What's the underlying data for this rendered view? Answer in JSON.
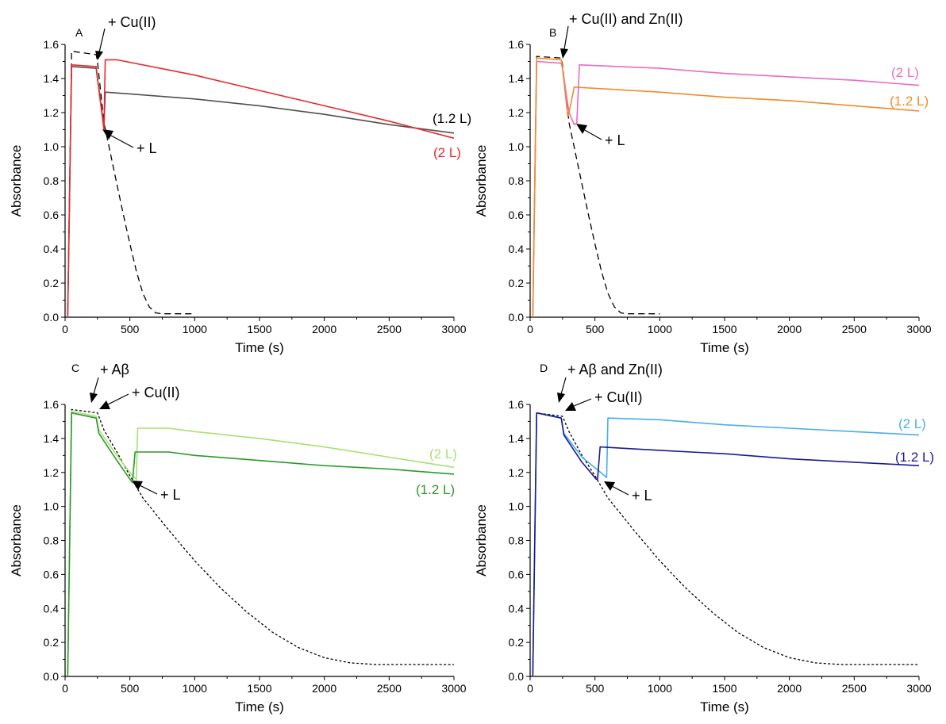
{
  "chart_data": [
    {
      "type": "line",
      "panel_label": "A",
      "xlabel": "Time (s)",
      "ylabel": "Absorbance",
      "xlim": [
        0,
        3000
      ],
      "ylim": [
        0,
        1.6
      ],
      "xticks": [
        "0",
        "500",
        "1000",
        "1500",
        "2000",
        "2500",
        "3000"
      ],
      "yticks": [
        "0.0",
        "0.2",
        "0.4",
        "0.6",
        "0.8",
        "1.0",
        "1.2",
        "1.4",
        "1.6"
      ],
      "series": [
        {
          "name": "",
          "color": "#000000",
          "dash": "dashed",
          "x": [
            20,
            50,
            240,
            250,
            300,
            350,
            400,
            450,
            500,
            550,
            600,
            650,
            700,
            750,
            800,
            900,
            1000
          ],
          "y": [
            0.0,
            1.56,
            1.54,
            1.5,
            1.14,
            0.96,
            0.78,
            0.6,
            0.43,
            0.27,
            0.14,
            0.06,
            0.025,
            0.02,
            0.02,
            0.02,
            0.02
          ]
        },
        {
          "name": "(1.2 L)",
          "color": "#505050",
          "dash": "solid",
          "x": [
            20,
            50,
            240,
            250,
            300,
            310,
            500,
            1000,
            1500,
            2000,
            2500,
            3000
          ],
          "y": [
            0.0,
            1.47,
            1.46,
            1.4,
            1.12,
            1.32,
            1.31,
            1.28,
            1.24,
            1.19,
            1.13,
            1.08
          ]
        },
        {
          "name": "(2 L)",
          "color": "#e8282c",
          "dash": "solid",
          "x": [
            20,
            50,
            240,
            250,
            300,
            310,
            400,
            1000,
            1500,
            2000,
            2500,
            3000
          ],
          "y": [
            0.0,
            1.48,
            1.47,
            1.4,
            1.1,
            1.51,
            1.51,
            1.42,
            1.33,
            1.24,
            1.15,
            1.05
          ]
        }
      ],
      "annotations": [
        "+ Cu(II)",
        "+ L"
      ]
    },
    {
      "type": "line",
      "panel_label": "B",
      "xlabel": "Time (s)",
      "ylabel": "Absorbance",
      "xlim": [
        0,
        3000
      ],
      "ylim": [
        0,
        1.6
      ],
      "xticks": [
        "0",
        "500",
        "1000",
        "1500",
        "2000",
        "2500",
        "3000"
      ],
      "yticks": [
        "0.0",
        "0.2",
        "0.4",
        "0.6",
        "0.8",
        "1.0",
        "1.2",
        "1.4",
        "1.6"
      ],
      "series": [
        {
          "name": "",
          "color": "#000000",
          "dash": "dashed",
          "x": [
            20,
            50,
            240,
            250,
            300,
            350,
            400,
            450,
            500,
            550,
            600,
            650,
            700,
            750,
            800,
            900,
            1000
          ],
          "y": [
            0.0,
            1.53,
            1.52,
            1.48,
            1.14,
            0.96,
            0.78,
            0.6,
            0.43,
            0.27,
            0.14,
            0.06,
            0.025,
            0.02,
            0.02,
            0.02,
            0.02
          ]
        },
        {
          "name": "(2 L)",
          "color": "#e86ac8",
          "dash": "solid",
          "x": [
            20,
            50,
            240,
            250,
            300,
            340,
            360,
            380,
            1000,
            1500,
            2000,
            2500,
            3000
          ],
          "y": [
            0.0,
            1.5,
            1.49,
            1.46,
            1.2,
            1.13,
            1.14,
            1.48,
            1.46,
            1.43,
            1.41,
            1.39,
            1.36
          ]
        },
        {
          "name": "(1.2 L)",
          "color": "#f08c28",
          "dash": "solid",
          "x": [
            20,
            50,
            240,
            250,
            290,
            300,
            340,
            1000,
            1500,
            2000,
            2500,
            3000
          ],
          "y": [
            0.0,
            1.52,
            1.51,
            1.46,
            1.18,
            1.2,
            1.35,
            1.32,
            1.29,
            1.27,
            1.24,
            1.21
          ]
        }
      ],
      "annotations": [
        "+ Cu(II) and Zn(II)",
        "+ L"
      ]
    },
    {
      "type": "line",
      "panel_label": "C",
      "xlabel": "Time (s)",
      "ylabel": "Absorbance",
      "xlim": [
        0,
        3000
      ],
      "ylim": [
        0,
        1.6
      ],
      "xticks": [
        "0",
        "500",
        "1000",
        "1500",
        "2000",
        "2500",
        "3000"
      ],
      "yticks": [
        "0.0",
        "0.2",
        "0.4",
        "0.6",
        "0.8",
        "1.0",
        "1.2",
        "1.4",
        "1.6"
      ],
      "series": [
        {
          "name": "",
          "color": "#000000",
          "dash": "dotted",
          "x": [
            20,
            50,
            250,
            300,
            400,
            500,
            600,
            800,
            1000,
            1200,
            1400,
            1600,
            1800,
            2000,
            2200,
            2400,
            2500,
            2600,
            3000
          ],
          "y": [
            0.0,
            1.57,
            1.55,
            1.45,
            1.32,
            1.18,
            1.05,
            0.86,
            0.68,
            0.52,
            0.38,
            0.26,
            0.17,
            0.11,
            0.08,
            0.07,
            0.07,
            0.07,
            0.07
          ]
        },
        {
          "name": "(2 L)",
          "color": "#a8e070",
          "dash": "solid",
          "x": [
            20,
            50,
            240,
            260,
            400,
            520,
            550,
            560,
            800,
            1000,
            1500,
            2000,
            2500,
            3000
          ],
          "y": [
            0.0,
            1.56,
            1.53,
            1.45,
            1.3,
            1.18,
            1.16,
            1.46,
            1.46,
            1.44,
            1.4,
            1.35,
            1.29,
            1.23
          ]
        },
        {
          "name": "(1.2 L)",
          "color": "#2a9a2a",
          "dash": "solid",
          "x": [
            20,
            50,
            240,
            260,
            400,
            500,
            520,
            540,
            800,
            1000,
            1500,
            2000,
            2500,
            3000
          ],
          "y": [
            0.0,
            1.55,
            1.52,
            1.43,
            1.27,
            1.16,
            1.14,
            1.32,
            1.32,
            1.3,
            1.27,
            1.24,
            1.22,
            1.19
          ]
        }
      ],
      "annotations": [
        "+ Aβ",
        "+ Cu(II)",
        "+ L"
      ]
    },
    {
      "type": "line",
      "panel_label": "D",
      "xlabel": "Time (s)",
      "ylabel": "Absorbance",
      "xlim": [
        0,
        3000
      ],
      "ylim": [
        0,
        1.6
      ],
      "xticks": [
        "0",
        "500",
        "1000",
        "1500",
        "2000",
        "2500",
        "3000"
      ],
      "yticks": [
        "0.0",
        "0.2",
        "0.4",
        "0.6",
        "0.8",
        "1.0",
        "1.2",
        "1.4",
        "1.6"
      ],
      "series": [
        {
          "name": "",
          "color": "#000000",
          "dash": "dotted",
          "x": [
            20,
            50,
            250,
            300,
            400,
            500,
            600,
            800,
            1000,
            1200,
            1400,
            1600,
            1800,
            2000,
            2200,
            2400,
            2500,
            2600,
            3000
          ],
          "y": [
            0.0,
            1.55,
            1.53,
            1.44,
            1.3,
            1.18,
            1.05,
            0.86,
            0.68,
            0.52,
            0.38,
            0.26,
            0.17,
            0.11,
            0.08,
            0.07,
            0.07,
            0.07,
            0.07
          ]
        },
        {
          "name": "(2 L)",
          "color": "#48aee8",
          "dash": "solid",
          "x": [
            20,
            50,
            240,
            260,
            400,
            560,
            590,
            600,
            1000,
            1500,
            2000,
            2500,
            3000
          ],
          "y": [
            0.0,
            1.55,
            1.52,
            1.43,
            1.29,
            1.19,
            1.17,
            1.52,
            1.51,
            1.48,
            1.46,
            1.44,
            1.42
          ]
        },
        {
          "name": "(1.2 L)",
          "color": "#1a1a90",
          "dash": "solid",
          "x": [
            20,
            50,
            240,
            260,
            400,
            510,
            520,
            540,
            1000,
            1500,
            2000,
            2500,
            3000
          ],
          "y": [
            0.0,
            1.55,
            1.52,
            1.42,
            1.26,
            1.16,
            1.16,
            1.35,
            1.33,
            1.31,
            1.28,
            1.26,
            1.24
          ]
        }
      ],
      "annotations": [
        "+ Aβ and Zn(II)",
        "+ Cu(II)",
        "+ L"
      ]
    }
  ]
}
